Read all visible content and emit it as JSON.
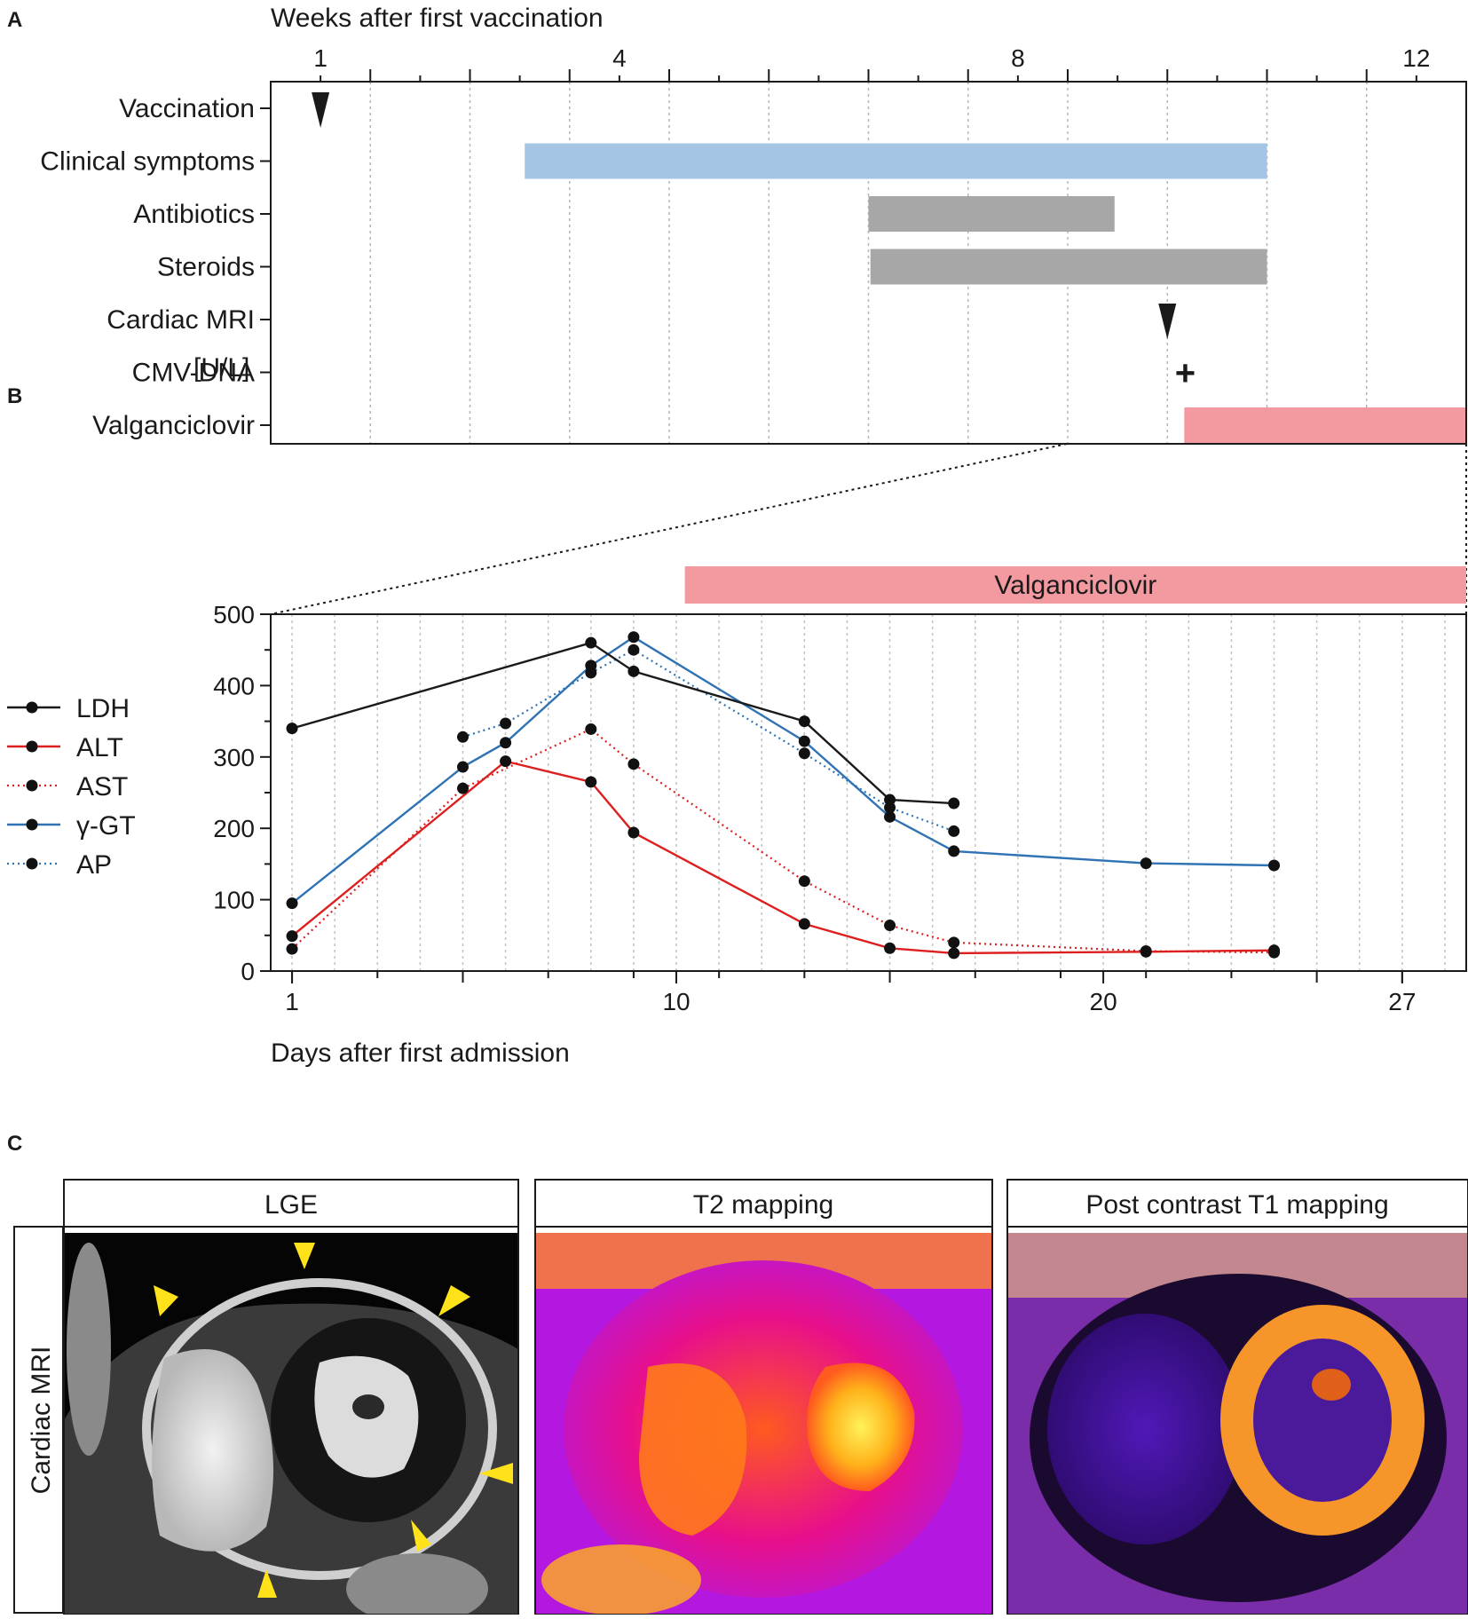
{
  "panels": {
    "a": "A",
    "b": "B",
    "c": "C"
  },
  "colors": {
    "ldh": "#1a1a1a",
    "alt": "#dd1f1f",
    "ast": "#dd1f1f",
    "ggt": "#2f73b5",
    "ap": "#2f73b5",
    "symptoms": "#a4c5e3",
    "treatment_gray": "#a7a7a7",
    "valganciclovir": "#f29aa0",
    "marker_yellow": "#ffe21a"
  },
  "chart_data": [
    {
      "id": "timeline",
      "type": "gantt",
      "title": "",
      "xlabel": "Weeks after first vaccination",
      "xlim": [
        0.5,
        12.5
      ],
      "xticks": [
        1,
        4,
        8,
        12
      ],
      "grid": true,
      "rows": [
        {
          "label": "Vaccination",
          "kind": "marker",
          "at": 1
        },
        {
          "label": "Clinical symptoms",
          "kind": "bar",
          "start": 3.05,
          "end": 10.5,
          "color_key": "symptoms"
        },
        {
          "label": "Antibiotics",
          "kind": "bar",
          "start": 6.5,
          "end": 8.97,
          "color_key": "treatment_gray"
        },
        {
          "label": "Steroids",
          "kind": "bar",
          "start": 6.52,
          "end": 10.5,
          "color_key": "treatment_gray"
        },
        {
          "label": "Cardiac MRI",
          "kind": "marker",
          "at": 9.5
        },
        {
          "label": "CMV-DNA",
          "kind": "plus",
          "at": 9.68,
          "symbol": "+"
        },
        {
          "label": "Valganciclovir",
          "kind": "bar",
          "start": 9.67,
          "end": 12.5,
          "color_key": "valganciclovir"
        }
      ]
    },
    {
      "id": "labs",
      "type": "line",
      "xlabel": "Days after first admission",
      "ylabel": "[U/L]",
      "xlim": [
        0.5,
        28.5
      ],
      "ylim": [
        0,
        500
      ],
      "xticks": [
        1,
        10,
        20,
        27
      ],
      "yticks": [
        0,
        100,
        200,
        300,
        400,
        500
      ],
      "grid": true,
      "legend_position": "left",
      "band": {
        "label": "Valganciclovir",
        "start": 10.2,
        "end": 28.5
      },
      "series": [
        {
          "name": "LDH",
          "style": "solid",
          "color_key": "ldh",
          "points": [
            [
              1,
              340
            ],
            [
              8,
              460
            ],
            [
              9,
              420
            ],
            [
              13,
              350
            ],
            [
              15,
              240
            ],
            [
              16.5,
              235
            ]
          ]
        },
        {
          "name": "ALT",
          "style": "solid",
          "color_key": "alt",
          "points": [
            [
              1,
              49
            ],
            [
              6,
              294
            ],
            [
              8,
              265
            ],
            [
              9,
              194
            ],
            [
              13,
              66
            ],
            [
              15,
              32
            ],
            [
              16.5,
              25
            ],
            [
              21,
              27
            ],
            [
              24,
              29
            ]
          ]
        },
        {
          "name": "AST",
          "style": "dotted",
          "color_key": "ast",
          "points": [
            [
              1,
              31
            ],
            [
              5,
              256
            ],
            [
              8,
              339
            ],
            [
              9,
              290
            ],
            [
              13,
              126
            ],
            [
              15,
              64
            ],
            [
              16.5,
              40
            ],
            [
              21,
              28
            ],
            [
              24,
              26
            ]
          ]
        },
        {
          "name": "γ-GT",
          "style": "solid",
          "color_key": "ggt",
          "points": [
            [
              1,
              95
            ],
            [
              5,
              286
            ],
            [
              6,
              320
            ],
            [
              8,
              428
            ],
            [
              9,
              468
            ],
            [
              13,
              322
            ],
            [
              15,
              216
            ],
            [
              16.5,
              168
            ],
            [
              21,
              151
            ],
            [
              24,
              148
            ]
          ]
        },
        {
          "name": "AP",
          "style": "dotted",
          "color_key": "ap",
          "points": [
            [
              5,
              328
            ],
            [
              6,
              347
            ],
            [
              8,
              418
            ],
            [
              9,
              450
            ],
            [
              13,
              305
            ],
            [
              15,
              229
            ],
            [
              16.5,
              196
            ]
          ]
        }
      ]
    }
  ],
  "mri": {
    "row_label": "Cardiac MRI",
    "panels": [
      {
        "title": "LGE"
      },
      {
        "title": "T2 mapping"
      },
      {
        "title": "Post contrast T1 mapping"
      }
    ]
  }
}
